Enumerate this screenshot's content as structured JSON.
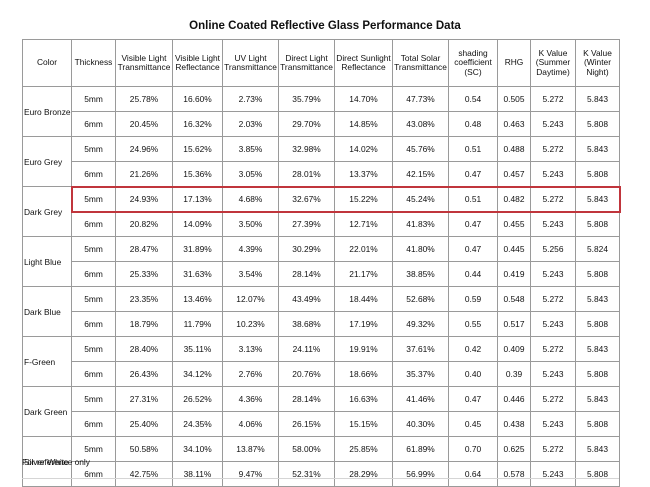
{
  "title": "Online Coated Reflective Glass Performance Data",
  "headers": [
    "Color",
    "Thickness",
    "Visible Light Transmittance",
    "Visible Light Reflectance",
    "UV Light Transmittance",
    "Direct Light Transmittance",
    "Direct Sunlight Reflectance",
    "Total Solar Transmittance",
    "shading coefficient (SC)",
    "RHG",
    "K Value (Summer Daytime)",
    "K Value (Winter Night)"
  ],
  "groups": [
    {
      "color": "Euro Bronze",
      "rows": [
        [
          "5mm",
          "25.78%",
          "16.60%",
          "2.73%",
          "35.79%",
          "14.70%",
          "47.73%",
          "0.54",
          "0.505",
          "5.272",
          "5.843"
        ],
        [
          "6mm",
          "20.45%",
          "16.32%",
          "2.03%",
          "29.70%",
          "14.85%",
          "43.08%",
          "0.48",
          "0.463",
          "5.243",
          "5.808"
        ]
      ]
    },
    {
      "color": "Euro Grey",
      "rows": [
        [
          "5mm",
          "24.96%",
          "15.62%",
          "3.85%",
          "32.98%",
          "14.02%",
          "45.76%",
          "0.51",
          "0.488",
          "5.272",
          "5.843"
        ],
        [
          "6mm",
          "21.26%",
          "15.36%",
          "3.05%",
          "28.01%",
          "13.37%",
          "42.15%",
          "0.47",
          "0.457",
          "5.243",
          "5.808"
        ]
      ]
    },
    {
      "color": "Dark Grey",
      "rows": [
        [
          "5mm",
          "24.93%",
          "17.13%",
          "4.68%",
          "32.67%",
          "15.22%",
          "45.24%",
          "0.51",
          "0.482",
          "5.272",
          "5.843"
        ],
        [
          "6mm",
          "20.82%",
          "14.09%",
          "3.50%",
          "27.39%",
          "12.71%",
          "41.83%",
          "0.47",
          "0.455",
          "5.243",
          "5.808"
        ]
      ]
    },
    {
      "color": "Light Blue",
      "rows": [
        [
          "5mm",
          "28.47%",
          "31.89%",
          "4.39%",
          "30.29%",
          "22.01%",
          "41.80%",
          "0.47",
          "0.445",
          "5.256",
          "5.824"
        ],
        [
          "6mm",
          "25.33%",
          "31.63%",
          "3.54%",
          "28.14%",
          "21.17%",
          "38.85%",
          "0.44",
          "0.419",
          "5.243",
          "5.808"
        ]
      ]
    },
    {
      "color": "Dark Blue",
      "rows": [
        [
          "5mm",
          "23.35%",
          "13.46%",
          "12.07%",
          "43.49%",
          "18.44%",
          "52.68%",
          "0.59",
          "0.548",
          "5.272",
          "5.843"
        ],
        [
          "6mm",
          "18.79%",
          "11.79%",
          "10.23%",
          "38.68%",
          "17.19%",
          "49.32%",
          "0.55",
          "0.517",
          "5.243",
          "5.808"
        ]
      ]
    },
    {
      "color": "F-Green",
      "rows": [
        [
          "5mm",
          "28.40%",
          "35.11%",
          "3.13%",
          "24.11%",
          "19.91%",
          "37.61%",
          "0.42",
          "0.409",
          "5.272",
          "5.843"
        ],
        [
          "6mm",
          "26.43%",
          "34.12%",
          "2.76%",
          "20.76%",
          "18.66%",
          "35.37%",
          "0.40",
          "0.39",
          "5.243",
          "5.808"
        ]
      ]
    },
    {
      "color": "Dark Green",
      "rows": [
        [
          "5mm",
          "27.31%",
          "26.52%",
          "4.36%",
          "28.14%",
          "16.63%",
          "41.46%",
          "0.47",
          "0.446",
          "5.272",
          "5.843"
        ],
        [
          "6mm",
          "25.40%",
          "24.35%",
          "4.06%",
          "26.15%",
          "15.15%",
          "40.30%",
          "0.45",
          "0.438",
          "5.243",
          "5.808"
        ]
      ]
    },
    {
      "color": "Silver White",
      "rows": [
        [
          "5mm",
          "50.58%",
          "34.10%",
          "13.87%",
          "58.00%",
          "25.85%",
          "61.89%",
          "0.70",
          "0.625",
          "5.272",
          "5.843"
        ],
        [
          "6mm",
          "42.75%",
          "38.11%",
          "9.47%",
          "52.31%",
          "28.29%",
          "56.99%",
          "0.64",
          "0.578",
          "5.243",
          "5.808"
        ]
      ]
    }
  ],
  "highlight": {
    "group": 2,
    "row": 0,
    "color": "#c0353c"
  },
  "footer": "For reference only"
}
